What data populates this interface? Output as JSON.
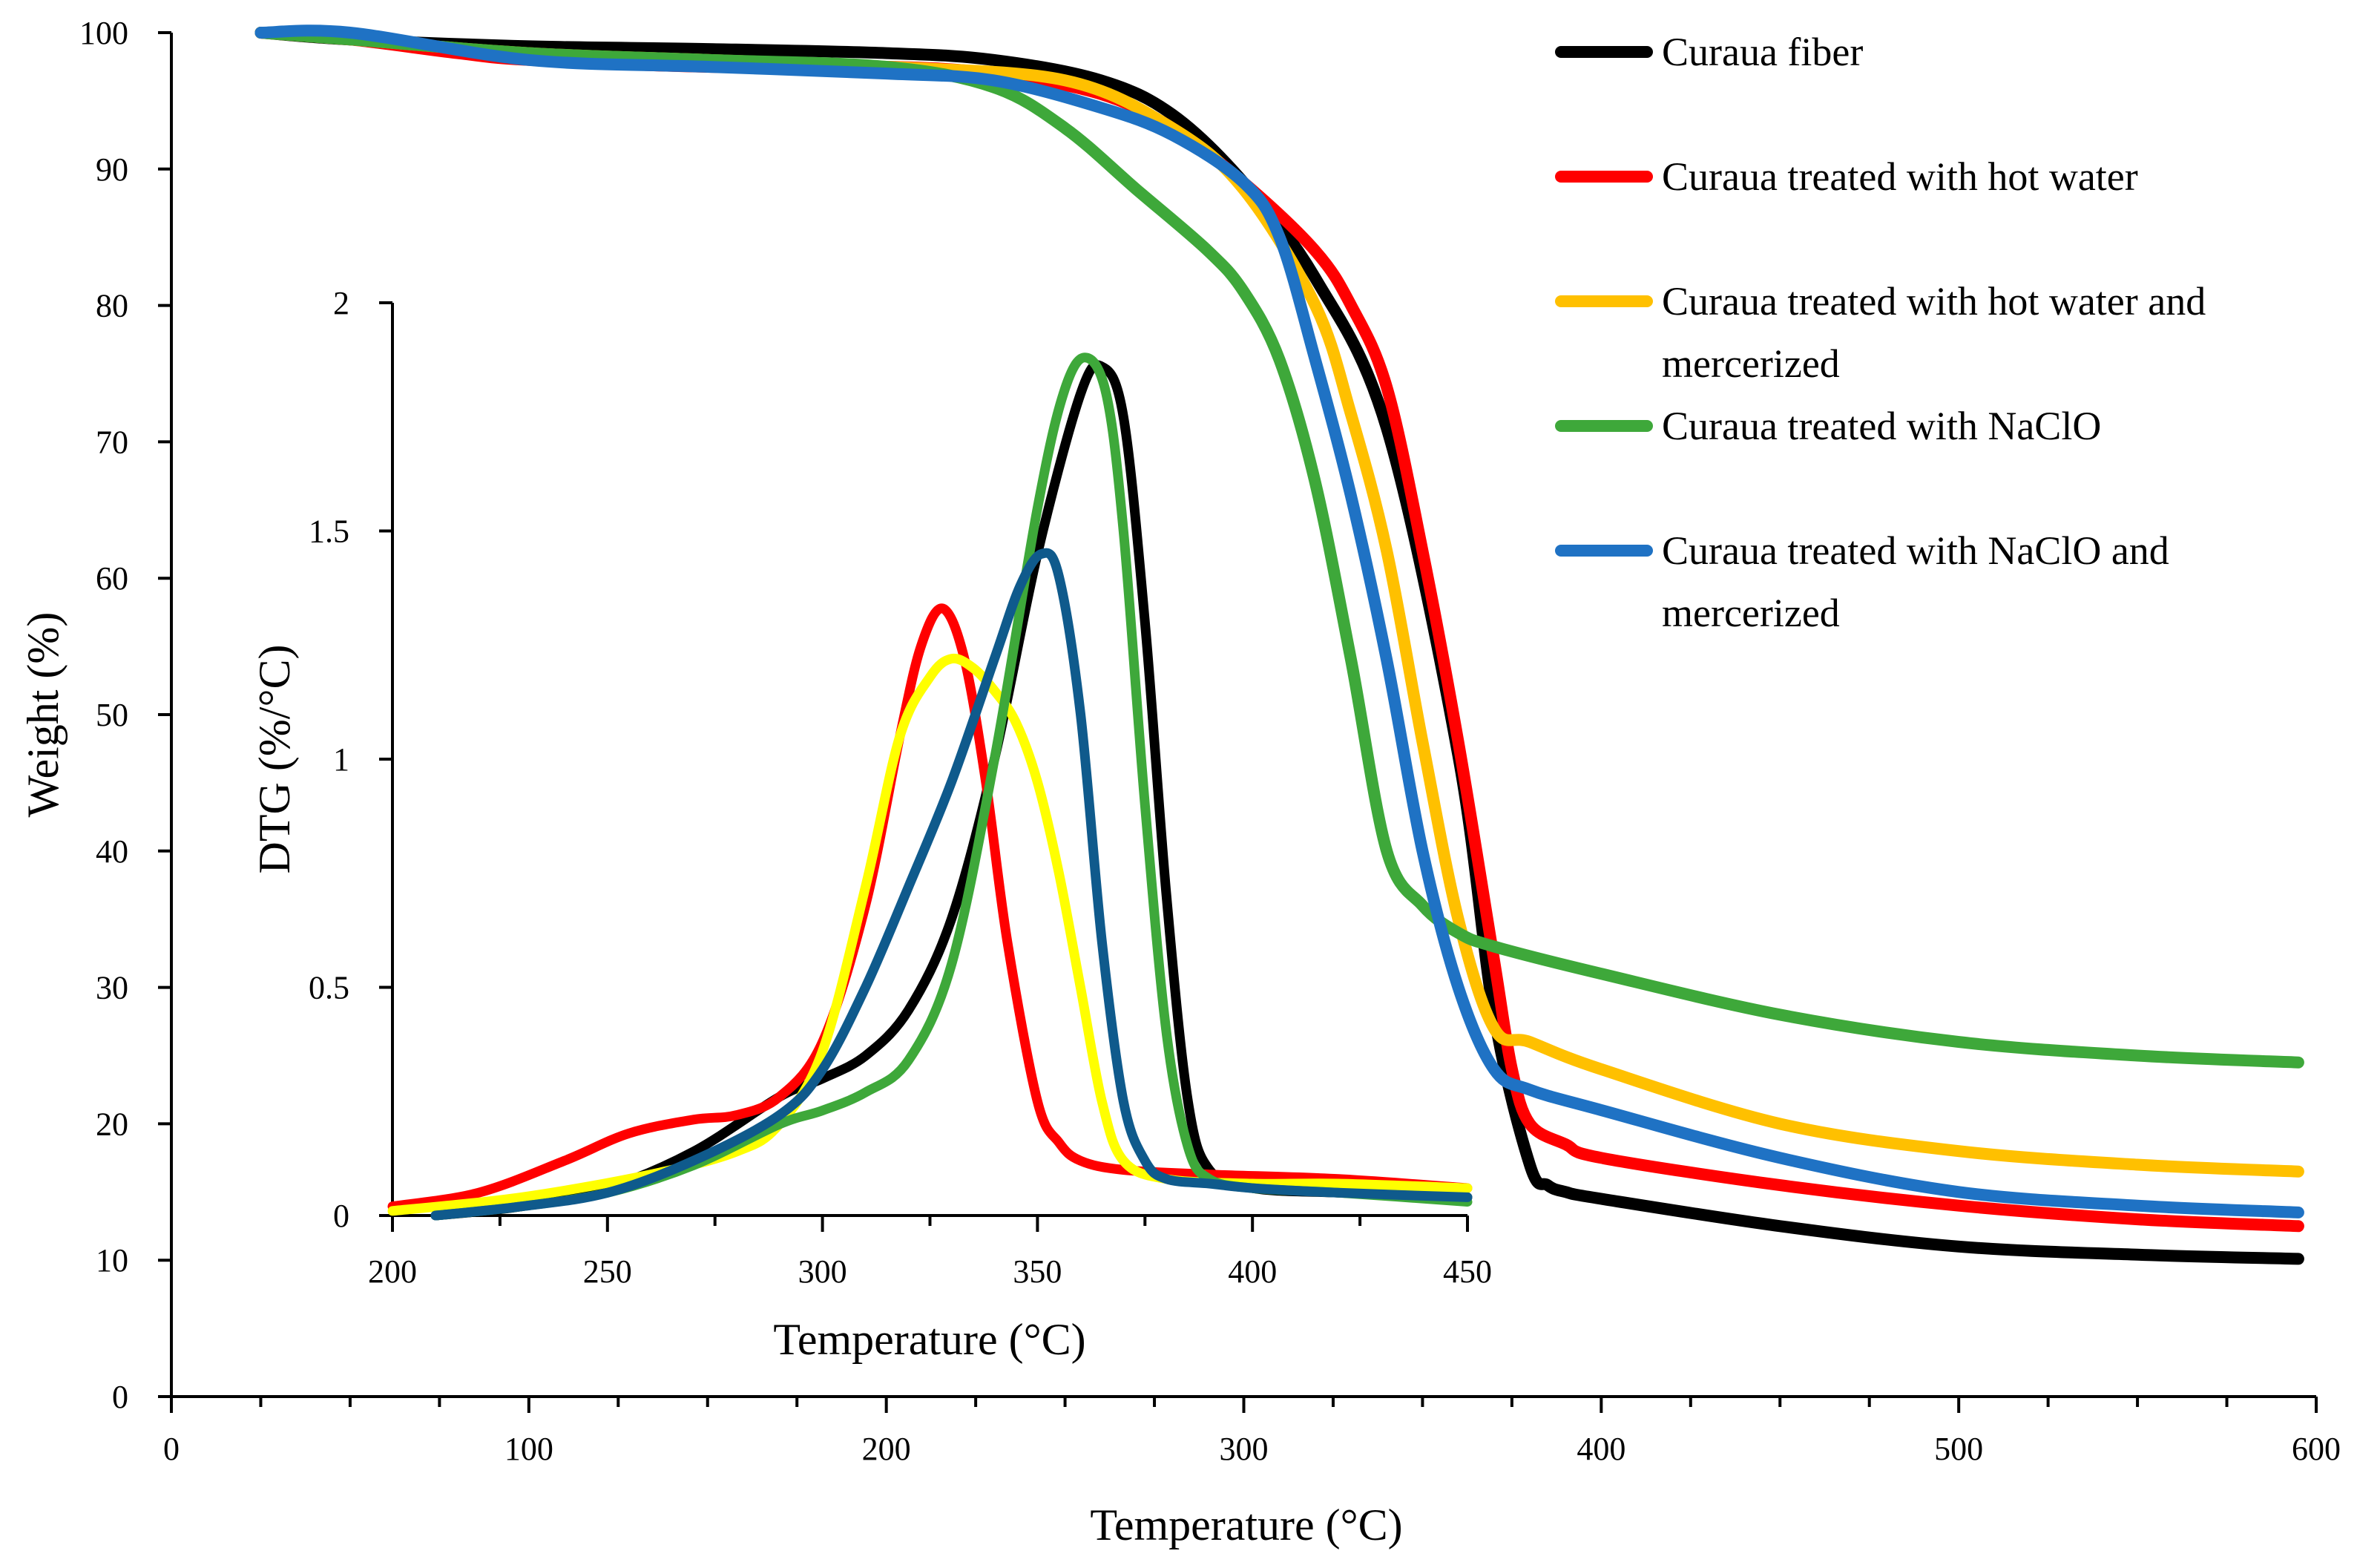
{
  "chart_data": [
    {
      "type": "line",
      "title": "",
      "xlabel": "Temperature  (°C)",
      "ylabel": "Weight (%)",
      "xlim": [
        0,
        600
      ],
      "ylim": [
        0,
        100
      ],
      "xticks": [
        "0",
        "100",
        "200",
        "300",
        "400",
        "500",
        "600"
      ],
      "yticks": [
        "0",
        "10",
        "20",
        "30",
        "40",
        "50",
        "60",
        "70",
        "80",
        "90",
        "100"
      ],
      "legend": "top-right",
      "grid": false,
      "series": [
        {
          "name": "Curaua fiber",
          "color": "#000000",
          "x": [
            25,
            50,
            100,
            150,
            200,
            230,
            260,
            280,
            300,
            320,
            340,
            360,
            370,
            380,
            385,
            390,
            400,
            450,
            500,
            550,
            595
          ],
          "y": [
            100,
            99.5,
            99,
            98.8,
            98.5,
            98,
            96.5,
            94,
            89,
            82,
            71,
            47,
            28,
            17,
            15.5,
            15,
            14.5,
            12.5,
            11,
            10.4,
            10.1
          ]
        },
        {
          "name": "Curaua treated with hot water",
          "color": "#ff0000",
          "x": [
            25,
            50,
            80,
            100,
            150,
            200,
            230,
            260,
            280,
            300,
            320,
            330,
            340,
            350,
            360,
            370,
            375,
            380,
            390,
            400,
            450,
            500,
            550,
            595
          ],
          "y": [
            100,
            99.5,
            98.5,
            98,
            97.5,
            97.5,
            97,
            95.5,
            93,
            89,
            84,
            80,
            74,
            62,
            48,
            32,
            24,
            20,
            18.5,
            17.5,
            15.5,
            14,
            13,
            12.5
          ]
        },
        {
          "name": "Curaua treated with hot water and mercerized",
          "color": "#ffc000",
          "x": [
            25,
            50,
            100,
            150,
            200,
            250,
            280,
            300,
            320,
            330,
            340,
            350,
            360,
            370,
            380,
            400,
            450,
            500,
            550,
            595
          ],
          "y": [
            100,
            99.5,
            98.5,
            98,
            97.5,
            96.5,
            93,
            88.5,
            80,
            72,
            62,
            48,
            35,
            27,
            26,
            24,
            20,
            18,
            17,
            16.5
          ]
        },
        {
          "name": "Curaua treated with NaClO",
          "color": "#3ea83a",
          "x": [
            25,
            50,
            100,
            150,
            200,
            230,
            250,
            270,
            290,
            300,
            310,
            320,
            330,
            340,
            350,
            360,
            370,
            400,
            450,
            500,
            550,
            595
          ],
          "y": [
            100,
            99.5,
            98.5,
            98,
            97.5,
            96,
            93,
            88.5,
            84,
            81,
            76,
            67,
            54,
            40,
            36,
            34,
            33,
            31,
            28,
            26,
            25,
            24.5
          ]
        },
        {
          "name": "Curaua treated with NaClO and mercerized",
          "color": "#1f72c4",
          "x": [
            25,
            50,
            100,
            150,
            200,
            230,
            260,
            280,
            300,
            310,
            320,
            330,
            340,
            350,
            360,
            370,
            380,
            400,
            450,
            500,
            550,
            595
          ],
          "y": [
            100,
            100,
            98,
            97.5,
            97,
            96.5,
            94.5,
            92.5,
            89,
            85,
            76,
            66,
            54,
            40,
            30,
            24,
            22.5,
            21,
            17.5,
            15,
            14,
            13.5
          ]
        }
      ]
    },
    {
      "type": "line",
      "title": "",
      "xlabel": "Temperature  (°C)",
      "ylabel": "DTG (%/°C)",
      "xlim": [
        200,
        450
      ],
      "ylim": [
        0,
        2
      ],
      "xticks": [
        "200",
        "250",
        "300",
        "350",
        "400",
        "450"
      ],
      "yticks": [
        "0",
        "0.5",
        "1",
        "1.5",
        "2"
      ],
      "legend": "none",
      "grid": false,
      "series": [
        {
          "name": "Curaua fiber",
          "color": "#000000",
          "x": [
            210,
            230,
            250,
            270,
            290,
            300,
            310,
            320,
            330,
            340,
            350,
            360,
            365,
            370,
            375,
            380,
            385,
            390,
            400,
            420,
            450
          ],
          "y": [
            0.0,
            0.02,
            0.06,
            0.14,
            0.26,
            0.3,
            0.35,
            0.45,
            0.65,
            1.0,
            1.45,
            1.8,
            1.86,
            1.75,
            1.3,
            0.7,
            0.25,
            0.1,
            0.06,
            0.05,
            0.04
          ]
        },
        {
          "name": "Curaua treated with hot water",
          "color": "#ff0000",
          "x": [
            200,
            220,
            240,
            255,
            270,
            280,
            290,
            300,
            310,
            318,
            323,
            328,
            333,
            338,
            343,
            350,
            355,
            360,
            370,
            390,
            420,
            450
          ],
          "y": [
            0.02,
            0.05,
            0.12,
            0.18,
            0.21,
            0.22,
            0.26,
            0.38,
            0.68,
            1.05,
            1.25,
            1.33,
            1.22,
            0.95,
            0.6,
            0.25,
            0.16,
            0.12,
            0.1,
            0.09,
            0.08,
            0.06
          ]
        },
        {
          "name": "Curaua treated with hot water and mercerized",
          "color": "#ffff00",
          "x": [
            200,
            230,
            260,
            280,
            290,
            300,
            310,
            318,
            325,
            330,
            335,
            340,
            345,
            350,
            355,
            360,
            365,
            370,
            380,
            400,
            420,
            450
          ],
          "y": [
            0.01,
            0.04,
            0.09,
            0.14,
            0.2,
            0.36,
            0.72,
            1.05,
            1.18,
            1.22,
            1.2,
            1.15,
            1.08,
            0.95,
            0.75,
            0.5,
            0.25,
            0.12,
            0.08,
            0.07,
            0.07,
            0.06
          ]
        },
        {
          "name": "Curaua treated with NaClO",
          "color": "#3ea83a",
          "x": [
            210,
            230,
            250,
            270,
            290,
            300,
            310,
            320,
            330,
            340,
            350,
            356,
            361,
            366,
            370,
            375,
            380,
            385,
            390,
            400,
            420,
            450
          ],
          "y": [
            0.0,
            0.02,
            0.05,
            0.11,
            0.2,
            0.23,
            0.27,
            0.34,
            0.55,
            1.0,
            1.55,
            1.8,
            1.88,
            1.8,
            1.5,
            0.9,
            0.4,
            0.15,
            0.08,
            0.06,
            0.05,
            0.03
          ]
        },
        {
          "name": "Curaua treated with NaClO and mercerized",
          "color": "#0f5a8c",
          "x": [
            210,
            230,
            250,
            270,
            290,
            300,
            310,
            320,
            330,
            340,
            346,
            351,
            355,
            360,
            365,
            370,
            375,
            380,
            390,
            400,
            420,
            450
          ],
          "y": [
            0.0,
            0.02,
            0.05,
            0.12,
            0.22,
            0.32,
            0.5,
            0.72,
            0.95,
            1.22,
            1.38,
            1.45,
            1.4,
            1.1,
            0.6,
            0.25,
            0.12,
            0.08,
            0.07,
            0.06,
            0.05,
            0.04
          ]
        }
      ]
    }
  ]
}
